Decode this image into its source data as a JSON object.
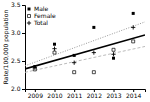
{
  "chart_data": {
    "type": "scatter",
    "ylabel": "Rate/100,000 population",
    "x": [
      2009,
      2010,
      2011,
      2012,
      2013,
      2014
    ],
    "xlim": [
      2008.5,
      2014.6
    ],
    "xticks": [
      2009,
      2010,
      2011,
      2012,
      2013,
      2014
    ],
    "ylim": [
      2.0,
      3.5
    ],
    "yticks": [
      {
        "value": 2.0,
        "label": "2.0"
      },
      2.5,
      {
        "value": 3.0,
        "label": "3.0"
      },
      3.5
    ],
    "grid": false,
    "legend": "upper left",
    "series": [
      {
        "name": "Male",
        "type": "scatter",
        "marker": "square",
        "color": "#000000",
        "values": [
          2.4,
          2.8,
          2.6,
          3.1,
          2.55,
          3.35
        ]
      },
      {
        "name": "Female",
        "type": "scatter",
        "marker": "square-open",
        "color": "#000000",
        "values": [
          2.35,
          2.65,
          2.3,
          2.3,
          2.7,
          2.85
        ]
      },
      {
        "name": "Total",
        "type": "scatter",
        "marker": "plus",
        "color": "#000000",
        "values": [
          2.38,
          2.72,
          2.47,
          2.65,
          2.62,
          3.1
        ]
      },
      {
        "type": "line",
        "line_style": "solid",
        "color": "#000000",
        "x": [
          2008.5,
          2014.6
        ],
        "values": [
          2.358381,
          2.964895
        ]
      },
      {
        "type": "line",
        "line_style": "dotted",
        "color": "#999999",
        "x": [
          2008.5,
          2014.6
        ],
        "values": [
          2.414286,
          3.198571
        ]
      },
      {
        "type": "line",
        "line_style": "dashed",
        "color": "#bbbbbb",
        "x": [
          2008.5,
          2014.6
        ],
        "values": [
          2.297857,
          2.759714
        ]
      }
    ]
  }
}
